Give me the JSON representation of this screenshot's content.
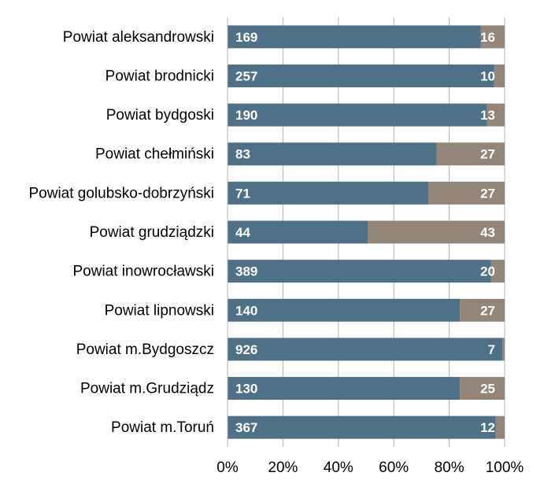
{
  "chart_data": {
    "type": "bar",
    "orientation": "horizontal",
    "stacked": "percent",
    "title": "",
    "xlabel": "",
    "ylabel": "",
    "xlim": [
      0,
      100
    ],
    "x_ticks": [
      "0%",
      "20%",
      "40%",
      "60%",
      "80%",
      "100%"
    ],
    "grid": "vertical",
    "legend": "none",
    "categories": [
      "Powiat aleksandrowski",
      "Powiat brodnicki",
      "Powiat bydgoski",
      "Powiat chełmiński",
      "Powiat golubsko-dobrzyński",
      "Powiat grudziądzki",
      "Powiat inowrocławski",
      "Powiat lipnowski",
      "Powiat m.Bydgoszcz",
      "Powiat m.Grudziądz",
      "Powiat m.Toruń"
    ],
    "series": [
      {
        "color": "#4f7188",
        "values": [
          169,
          257,
          190,
          83,
          71,
          44,
          389,
          140,
          926,
          130,
          367
        ]
      },
      {
        "color": "#948579",
        "values": [
          16,
          10,
          13,
          27,
          27,
          43,
          20,
          27,
          7,
          25,
          12
        ]
      }
    ],
    "data_label_color": "#ffffff",
    "grid_color": "#b3b3b3"
  }
}
